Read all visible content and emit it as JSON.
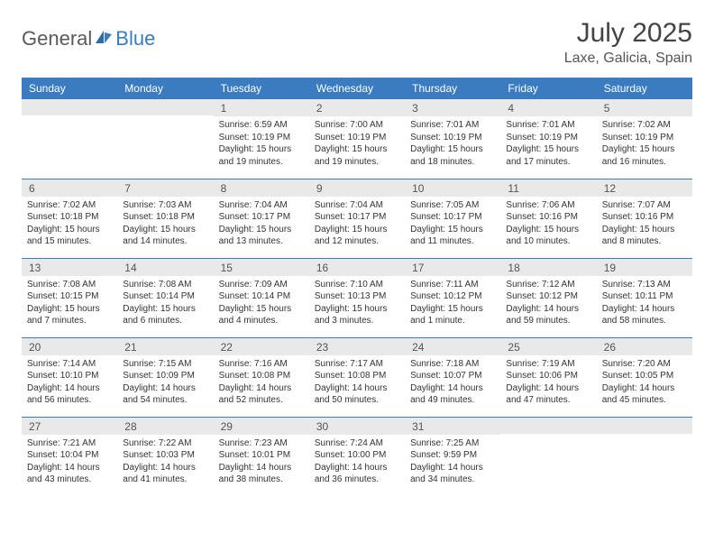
{
  "brand": {
    "part1": "General",
    "part2": "Blue"
  },
  "title": "July 2025",
  "location": "Laxe, Galicia, Spain",
  "weekday_header_bg": "#3a7cbf",
  "weekdays": [
    "Sunday",
    "Monday",
    "Tuesday",
    "Wednesday",
    "Thursday",
    "Friday",
    "Saturday"
  ],
  "weeks": [
    [
      null,
      null,
      {
        "n": "1",
        "sr": "6:59 AM",
        "ss": "10:19 PM",
        "dl": "15 hours and 19 minutes."
      },
      {
        "n": "2",
        "sr": "7:00 AM",
        "ss": "10:19 PM",
        "dl": "15 hours and 19 minutes."
      },
      {
        "n": "3",
        "sr": "7:01 AM",
        "ss": "10:19 PM",
        "dl": "15 hours and 18 minutes."
      },
      {
        "n": "4",
        "sr": "7:01 AM",
        "ss": "10:19 PM",
        "dl": "15 hours and 17 minutes."
      },
      {
        "n": "5",
        "sr": "7:02 AM",
        "ss": "10:19 PM",
        "dl": "15 hours and 16 minutes."
      }
    ],
    [
      {
        "n": "6",
        "sr": "7:02 AM",
        "ss": "10:18 PM",
        "dl": "15 hours and 15 minutes."
      },
      {
        "n": "7",
        "sr": "7:03 AM",
        "ss": "10:18 PM",
        "dl": "15 hours and 14 minutes."
      },
      {
        "n": "8",
        "sr": "7:04 AM",
        "ss": "10:17 PM",
        "dl": "15 hours and 13 minutes."
      },
      {
        "n": "9",
        "sr": "7:04 AM",
        "ss": "10:17 PM",
        "dl": "15 hours and 12 minutes."
      },
      {
        "n": "10",
        "sr": "7:05 AM",
        "ss": "10:17 PM",
        "dl": "15 hours and 11 minutes."
      },
      {
        "n": "11",
        "sr": "7:06 AM",
        "ss": "10:16 PM",
        "dl": "15 hours and 10 minutes."
      },
      {
        "n": "12",
        "sr": "7:07 AM",
        "ss": "10:16 PM",
        "dl": "15 hours and 8 minutes."
      }
    ],
    [
      {
        "n": "13",
        "sr": "7:08 AM",
        "ss": "10:15 PM",
        "dl": "15 hours and 7 minutes."
      },
      {
        "n": "14",
        "sr": "7:08 AM",
        "ss": "10:14 PM",
        "dl": "15 hours and 6 minutes."
      },
      {
        "n": "15",
        "sr": "7:09 AM",
        "ss": "10:14 PM",
        "dl": "15 hours and 4 minutes."
      },
      {
        "n": "16",
        "sr": "7:10 AM",
        "ss": "10:13 PM",
        "dl": "15 hours and 3 minutes."
      },
      {
        "n": "17",
        "sr": "7:11 AM",
        "ss": "10:12 PM",
        "dl": "15 hours and 1 minute."
      },
      {
        "n": "18",
        "sr": "7:12 AM",
        "ss": "10:12 PM",
        "dl": "14 hours and 59 minutes."
      },
      {
        "n": "19",
        "sr": "7:13 AM",
        "ss": "10:11 PM",
        "dl": "14 hours and 58 minutes."
      }
    ],
    [
      {
        "n": "20",
        "sr": "7:14 AM",
        "ss": "10:10 PM",
        "dl": "14 hours and 56 minutes."
      },
      {
        "n": "21",
        "sr": "7:15 AM",
        "ss": "10:09 PM",
        "dl": "14 hours and 54 minutes."
      },
      {
        "n": "22",
        "sr": "7:16 AM",
        "ss": "10:08 PM",
        "dl": "14 hours and 52 minutes."
      },
      {
        "n": "23",
        "sr": "7:17 AM",
        "ss": "10:08 PM",
        "dl": "14 hours and 50 minutes."
      },
      {
        "n": "24",
        "sr": "7:18 AM",
        "ss": "10:07 PM",
        "dl": "14 hours and 49 minutes."
      },
      {
        "n": "25",
        "sr": "7:19 AM",
        "ss": "10:06 PM",
        "dl": "14 hours and 47 minutes."
      },
      {
        "n": "26",
        "sr": "7:20 AM",
        "ss": "10:05 PM",
        "dl": "14 hours and 45 minutes."
      }
    ],
    [
      {
        "n": "27",
        "sr": "7:21 AM",
        "ss": "10:04 PM",
        "dl": "14 hours and 43 minutes."
      },
      {
        "n": "28",
        "sr": "7:22 AM",
        "ss": "10:03 PM",
        "dl": "14 hours and 41 minutes."
      },
      {
        "n": "29",
        "sr": "7:23 AM",
        "ss": "10:01 PM",
        "dl": "14 hours and 38 minutes."
      },
      {
        "n": "30",
        "sr": "7:24 AM",
        "ss": "10:00 PM",
        "dl": "14 hours and 36 minutes."
      },
      {
        "n": "31",
        "sr": "7:25 AM",
        "ss": "9:59 PM",
        "dl": "14 hours and 34 minutes."
      },
      null,
      null
    ]
  ],
  "labels": {
    "sunrise": "Sunrise: ",
    "sunset": "Sunset: ",
    "daylight": "Daylight: "
  }
}
